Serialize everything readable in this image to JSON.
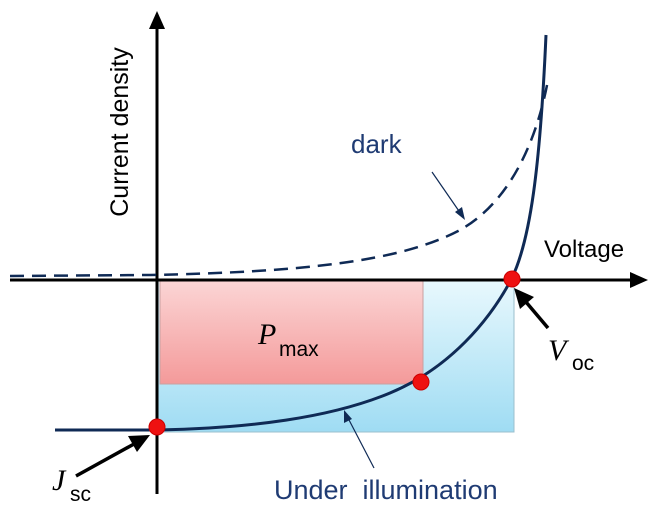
{
  "labels": {
    "y_axis": "Current density",
    "x_axis": "Voltage",
    "dark": "dark",
    "pmax_symbol": "P",
    "pmax_sub": "max",
    "voc_symbol": "V",
    "voc_sub": "oc",
    "jsc_symbol": "J",
    "jsc_sub": "sc",
    "illumination": "Under  illumination"
  },
  "colors": {
    "curve": "#0f2a55",
    "axes": "#000000",
    "dark_label": "#1f3b73",
    "point": "#ee1111",
    "pmax_fill": "#f6a3a3",
    "isc_voc_fill": "#a6e0f4"
  }
}
